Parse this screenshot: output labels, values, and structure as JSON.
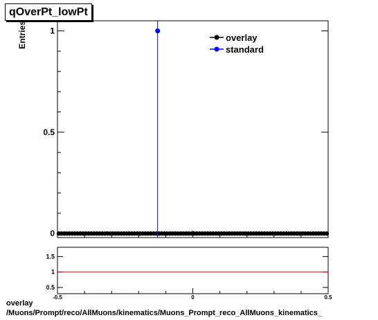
{
  "title": "qOverPt_lowPt",
  "footer": {
    "line1": "overlay",
    "line2": "/Muons/Prompt/reco/AllMuons/kinematics/Muons_Prompt_reco_AllMuons_kinematics_"
  },
  "colors": {
    "overlay": "#000000",
    "standard": "#0000ff",
    "ratio_line": "#cc0000",
    "frame": "#000000"
  },
  "chart_data": [
    {
      "type": "scatter",
      "panel": "main",
      "ylabel": "Entries",
      "xlabel": "",
      "xlim": [
        -0.5,
        0.5
      ],
      "ylim": [
        -0.02,
        1.05
      ],
      "yticks": [
        0,
        0.5,
        1
      ],
      "ytick_labels": [
        "0",
        "0.5",
        "1"
      ],
      "legend": "top-right",
      "series": [
        {
          "name": "overlay",
          "style": "markers",
          "color": "#000000",
          "bins": 100,
          "values": "all zero across the range",
          "x_range": [
            -0.5,
            0.5
          ],
          "y": 0
        },
        {
          "name": "standard",
          "style": "spike",
          "color": "#0000ff",
          "points": [
            {
              "x": -0.13,
              "y": 1
            }
          ]
        }
      ]
    },
    {
      "type": "line",
      "panel": "ratio",
      "xlim": [
        -0.5,
        0.5
      ],
      "ylim": [
        0.3,
        1.8
      ],
      "yticks": [
        0.5,
        1,
        1.5
      ],
      "ytick_labels": [
        "0.5",
        "1",
        "1.5"
      ],
      "xtick_labels": [
        "-0.5",
        "0",
        "0.5"
      ],
      "reference_line": 1
    }
  ]
}
